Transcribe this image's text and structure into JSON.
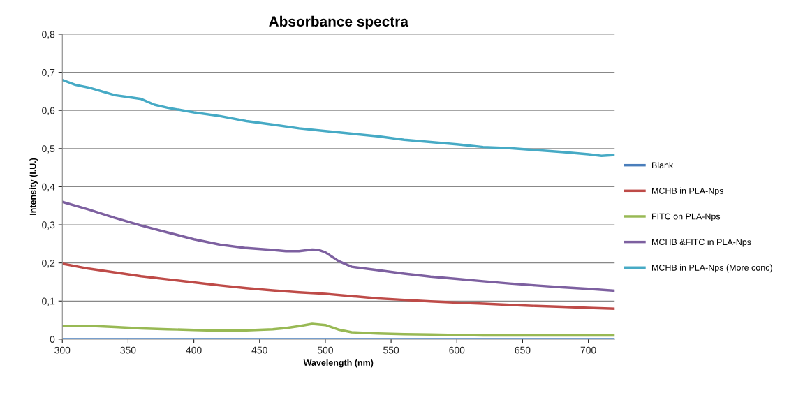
{
  "chart_data": {
    "type": "line",
    "title": "Absorbance spectra",
    "xlabel": "Wavelength (nm)",
    "ylabel": "Intensity (I.U.)",
    "xlim": [
      300,
      720
    ],
    "xticks": [
      300,
      350,
      400,
      450,
      500,
      550,
      600,
      650,
      700
    ],
    "ylim": [
      0,
      0.8
    ],
    "yticks": [
      {
        "value": 0,
        "label": "0"
      },
      {
        "value": 0.1,
        "label": "0,1"
      },
      {
        "value": 0.2,
        "label": "0,2"
      },
      {
        "value": 0.3,
        "label": "0,3"
      },
      {
        "value": 0.4,
        "label": "0,4"
      },
      {
        "value": 0.5,
        "label": "0,5"
      },
      {
        "value": 0.6,
        "label": "0,6"
      },
      {
        "value": 0.7,
        "label": "0,7"
      },
      {
        "value": 0.8,
        "label": "0,8"
      }
    ],
    "grid": "y",
    "legend": "right",
    "marker": "none",
    "line_style": "solid",
    "series": [
      {
        "name": "Blank",
        "color": "#4a7ebb",
        "x": [
          300,
          720
        ],
        "values": [
          0,
          0
        ]
      },
      {
        "name": "MCHB in PLA-Nps",
        "color": "#be4b48",
        "x": [
          300,
          320,
          340,
          360,
          380,
          400,
          420,
          440,
          460,
          480,
          500,
          520,
          540,
          560,
          580,
          600,
          620,
          640,
          660,
          680,
          700,
          720
        ],
        "values": [
          0.198,
          0.185,
          0.175,
          0.165,
          0.157,
          0.149,
          0.141,
          0.134,
          0.128,
          0.123,
          0.119,
          0.113,
          0.107,
          0.103,
          0.099,
          0.096,
          0.093,
          0.09,
          0.087,
          0.085,
          0.082,
          0.08
        ]
      },
      {
        "name": "FITC on PLA-Nps",
        "color": "#98b954",
        "x": [
          300,
          320,
          340,
          360,
          380,
          400,
          420,
          440,
          460,
          470,
          480,
          490,
          500,
          510,
          520,
          540,
          560,
          580,
          600,
          620,
          660,
          720
        ],
        "values": [
          0.034,
          0.035,
          0.032,
          0.028,
          0.026,
          0.024,
          0.022,
          0.023,
          0.026,
          0.029,
          0.034,
          0.04,
          0.037,
          0.025,
          0.018,
          0.015,
          0.013,
          0.012,
          0.011,
          0.01,
          0.01,
          0.01
        ]
      },
      {
        "name": "MCHB &FITC in PLA-Nps",
        "color": "#7d60a0",
        "x": [
          300,
          320,
          340,
          360,
          380,
          400,
          420,
          440,
          460,
          470,
          480,
          490,
          495,
          500,
          510,
          520,
          540,
          560,
          580,
          600,
          620,
          640,
          660,
          680,
          700,
          720
        ],
        "values": [
          0.36,
          0.34,
          0.318,
          0.298,
          0.28,
          0.262,
          0.248,
          0.239,
          0.234,
          0.231,
          0.231,
          0.235,
          0.234,
          0.228,
          0.205,
          0.19,
          0.181,
          0.172,
          0.164,
          0.158,
          0.152,
          0.146,
          0.141,
          0.136,
          0.132,
          0.127
        ]
      },
      {
        "name": "MCHB in PLA-Nps (More conc)",
        "color": "#46aac5",
        "x": [
          300,
          310,
          320,
          330,
          340,
          350,
          360,
          370,
          380,
          400,
          420,
          440,
          460,
          480,
          500,
          520,
          540,
          560,
          580,
          600,
          620,
          640,
          660,
          680,
          700,
          710,
          720
        ],
        "values": [
          0.68,
          0.667,
          0.66,
          0.65,
          0.64,
          0.635,
          0.63,
          0.615,
          0.607,
          0.595,
          0.585,
          0.572,
          0.563,
          0.553,
          0.546,
          0.539,
          0.532,
          0.523,
          0.517,
          0.511,
          0.504,
          0.501,
          0.496,
          0.491,
          0.485,
          0.481,
          0.483
        ]
      }
    ]
  }
}
